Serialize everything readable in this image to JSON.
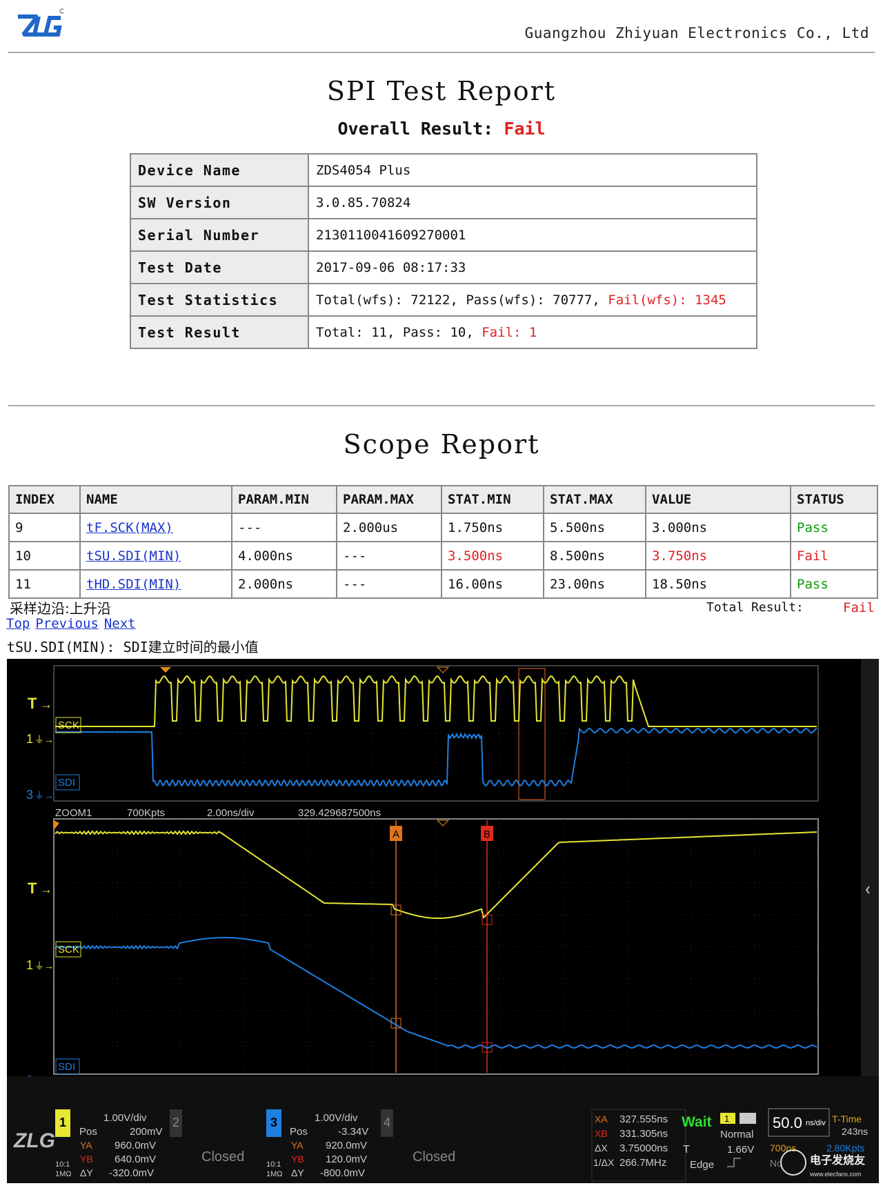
{
  "header": {
    "logo": "ZLG",
    "company": "Guangzhou Zhiyuan Electronics Co., Ltd"
  },
  "report": {
    "title": "SPI Test Report",
    "overall_label": "Overall Result:",
    "overall_value": "Fail",
    "rows": [
      {
        "key": "Device Name",
        "value": "ZDS4054 Plus"
      },
      {
        "key": "SW Version",
        "value": "3.0.85.70824"
      },
      {
        "key": "Serial Number",
        "value": "2130110041609270001"
      },
      {
        "key": "Test Date",
        "value": "2017-09-06 08:17:33"
      },
      {
        "key": "Test Statistics",
        "value": "Total(wfs): 72122, Pass(wfs): 70777, ",
        "fail": "Fail(wfs): 1345"
      },
      {
        "key": "Test Result",
        "value": "Total: 11, Pass: 10, ",
        "fail": "Fail: 1"
      }
    ]
  },
  "scope_report": {
    "title": "Scope Report",
    "columns": [
      "INDEX",
      "NAME",
      "PARAM.MIN",
      "PARAM.MAX",
      "STAT.MIN",
      "STAT.MAX",
      "VALUE",
      "STATUS"
    ],
    "rows": [
      {
        "index": "9",
        "name": "tF.SCK(MAX)",
        "pmin": "---",
        "pmax": "2.000us",
        "smin": "1.750ns",
        "smax": "5.500ns",
        "value": "3.000ns",
        "status": "Pass",
        "smin_red": false,
        "value_red": false
      },
      {
        "index": "10",
        "name": "tSU.SDI(MIN)",
        "pmin": "4.000ns",
        "pmax": "---",
        "smin": "3.500ns",
        "smax": "8.500ns",
        "value": "3.750ns",
        "status": "Fail",
        "smin_red": true,
        "value_red": true
      },
      {
        "index": "11",
        "name": "tHD.SDI(MIN)",
        "pmin": "2.000ns",
        "pmax": "---",
        "smin": "16.00ns",
        "smax": "23.00ns",
        "value": "18.50ns",
        "status": "Pass",
        "smin_red": false,
        "value_red": false
      }
    ],
    "sample_edge": "采样边沿:上升沿",
    "total_label": "Total Result:",
    "total_value": "Fail",
    "nav": [
      "Top",
      "Previous",
      "Next"
    ],
    "desc": "tSU.SDI(MIN): SDI建立时间的最小值"
  },
  "scope": {
    "zoom_label": "ZOOM1",
    "pts": "700Kpts",
    "tdiv": "2.00ns/div",
    "tpos": "329.429687500ns",
    "ch_sck": "SCK",
    "ch_sdi": "SDI",
    "trig": "T",
    "marker_a": "A",
    "marker_b": "B",
    "ch1": {
      "num": "1",
      "vdiv": "1.00V/div",
      "pos": "200mV",
      "ya": "960.0mV",
      "yb": "640.0mV",
      "dy": "-320.0mV",
      "imp": "1MΩ",
      "ratio": "10:1"
    },
    "ch2": {
      "num": "2",
      "state": "Closed"
    },
    "ch3": {
      "num": "3",
      "vdiv": "1.00V/div",
      "pos": "-3.34V",
      "ya": "920.0mV",
      "yb": "120.0mV",
      "dy": "-800.0mV",
      "imp": "1MΩ",
      "ratio": "10:1"
    },
    "ch4": {
      "num": "4",
      "state": "Closed"
    },
    "cursors": {
      "xa": "327.555ns",
      "xb": "331.305ns",
      "dx": "3.75000ns",
      "freq": "266.7MHz"
    },
    "status": "Wait",
    "mode": "Normal",
    "trig_level": "1.66V",
    "trig_type": "Edge",
    "timebase": "50.0",
    "timebase_unit": "ns/div",
    "t_time_label": "T-Time",
    "t_time": "243ns",
    "mem": "700ns",
    "kpts": "2.80Kpts",
    "watermark": "电子发烧友",
    "watermark_url": "www.elecfans.com"
  },
  "colors": {
    "fail": "#e02020",
    "pass": "#0a9a0a",
    "link": "#1a33cc",
    "sck": "#e6e633",
    "sdi": "#1e7fe0"
  }
}
